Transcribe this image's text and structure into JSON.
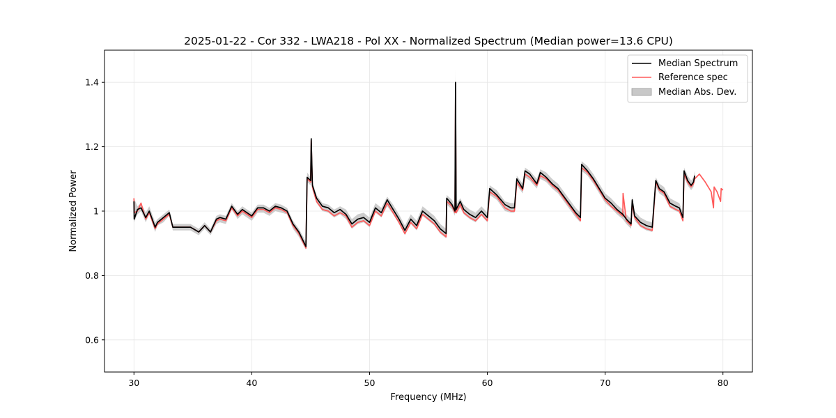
{
  "chart_data": {
    "type": "line",
    "title": "2025-01-22 - Cor 332 - LWA218 - Pol XX - Normalized Spectrum (Median power=13.6 CPU)",
    "xlabel": "Frequency (MHz)",
    "ylabel": "Normalized Power",
    "xlim": [
      27.5,
      82.5
    ],
    "ylim": [
      0.5,
      1.5
    ],
    "xticks": [
      30,
      40,
      50,
      60,
      70,
      80
    ],
    "yticks": [
      0.6,
      0.8,
      1.0,
      1.2,
      1.4
    ],
    "grid": true,
    "legend_position": "top-right",
    "series": [
      {
        "name": "Median Abs. Dev.",
        "kind": "band",
        "color": "#c8c8c8",
        "x": [
          30.0,
          30.3,
          30.6,
          31.0,
          31.3,
          31.8,
          32.0,
          32.5,
          33.0,
          33.3,
          34.0,
          34.8,
          35.5,
          36.0,
          36.5,
          37.0,
          37.3,
          37.8,
          38.3,
          38.8,
          39.2,
          39.6,
          40.0,
          40.5,
          41.0,
          41.5,
          42.0,
          42.5,
          43.0,
          43.5,
          44.0,
          44.6,
          44.7,
          45.0,
          45.05,
          45.15,
          45.5,
          46.0,
          46.5,
          47.0,
          47.5,
          48.0,
          48.5,
          49.0,
          49.5,
          50.0,
          50.5,
          51.0,
          51.5,
          52.0,
          52.5,
          53.0,
          53.5,
          54.0,
          54.5,
          55.0,
          55.5,
          56.0,
          56.5,
          56.55,
          57.0,
          57.25,
          57.3,
          57.35,
          57.7,
          58.0,
          58.5,
          59.0,
          59.5,
          60.0,
          60.2,
          60.8,
          61.5,
          62.0,
          62.3,
          62.5,
          63.0,
          63.2,
          63.6,
          64.2,
          64.5,
          65.0,
          65.5,
          66.0,
          66.5,
          67.0,
          67.5,
          67.9,
          68.0,
          68.5,
          69.0,
          69.5,
          70.0,
          70.5,
          71.0,
          71.5,
          71.8,
          72.2,
          72.3,
          72.5,
          73.0,
          73.5,
          74.0,
          74.3,
          74.6,
          75.0,
          75.5,
          76.0,
          76.3,
          76.6,
          76.7,
          77.0,
          77.3,
          77.5,
          77.6
        ],
        "upper": [
          1.04,
          1.015,
          1.025,
          0.995,
          1.015,
          0.965,
          0.975,
          0.99,
          1.005,
          0.96,
          0.96,
          0.96,
          0.945,
          0.965,
          0.945,
          0.985,
          0.99,
          0.985,
          1.025,
          1.0,
          1.015,
          1.005,
          0.995,
          1.02,
          1.02,
          1.01,
          1.025,
          1.02,
          1.01,
          0.97,
          0.945,
          0.905,
          1.12,
          1.105,
          1.23,
          1.09,
          1.05,
          1.025,
          1.02,
          1.005,
          1.015,
          1.005,
          0.975,
          0.99,
          0.995,
          0.98,
          1.025,
          1.01,
          1.045,
          1.02,
          0.99,
          0.955,
          0.99,
          0.97,
          1.015,
          1.0,
          0.985,
          0.96,
          0.945,
          1.05,
          1.035,
          1.015,
          1.44,
          1.02,
          1.04,
          1.02,
          1.005,
          0.995,
          1.015,
          0.995,
          1.08,
          1.065,
          1.03,
          1.025,
          1.025,
          1.11,
          1.085,
          1.135,
          1.125,
          1.1,
          1.13,
          1.12,
          1.1,
          1.085,
          1.06,
          1.035,
          1.01,
          0.995,
          1.155,
          1.14,
          1.115,
          1.085,
          1.055,
          1.04,
          1.02,
          1.005,
          0.99,
          0.975,
          1.045,
          1.0,
          0.98,
          0.97,
          0.965,
          1.105,
          1.085,
          1.075,
          1.04,
          1.03,
          1.025,
          0.995,
          1.135,
          1.11,
          1.095,
          1.105,
          1.125
        ],
        "lower": [
          0.965,
          0.99,
          1.0,
          0.965,
          0.99,
          0.935,
          0.955,
          0.965,
          0.985,
          0.94,
          0.94,
          0.94,
          0.925,
          0.945,
          0.925,
          0.96,
          0.965,
          0.96,
          1.005,
          0.975,
          0.99,
          0.98,
          0.97,
          0.995,
          0.995,
          0.985,
          1.0,
          0.995,
          0.99,
          0.945,
          0.92,
          0.88,
          1.09,
          1.08,
          1.19,
          1.065,
          1.025,
          1.0,
          0.995,
          0.98,
          0.99,
          0.975,
          0.945,
          0.96,
          0.965,
          0.95,
          0.995,
          0.98,
          1.015,
          0.99,
          0.96,
          0.925,
          0.96,
          0.94,
          0.985,
          0.97,
          0.955,
          0.93,
          0.915,
          1.02,
          1.005,
          0.985,
          1.36,
          0.99,
          1.01,
          0.99,
          0.975,
          0.965,
          0.985,
          0.965,
          1.05,
          1.035,
          1.0,
          0.995,
          0.995,
          1.08,
          1.055,
          1.105,
          1.095,
          1.07,
          1.1,
          1.09,
          1.07,
          1.055,
          1.03,
          1.005,
          0.98,
          0.965,
          1.125,
          1.11,
          1.085,
          1.055,
          1.025,
          1.01,
          0.99,
          0.975,
          0.96,
          0.945,
          1.015,
          0.97,
          0.95,
          0.94,
          0.935,
          1.075,
          1.055,
          1.045,
          1.01,
          1.0,
          0.995,
          0.965,
          1.105,
          1.08,
          1.065,
          1.075,
          1.095
        ]
      },
      {
        "name": "Reference spec",
        "kind": "line",
        "color": "#ff5a5a",
        "x": [
          30.0,
          30.02,
          30.3,
          30.6,
          31.0,
          31.3,
          31.8,
          32.0,
          32.5,
          33.0,
          33.3,
          34.0,
          34.8,
          35.5,
          36.0,
          36.5,
          37.0,
          37.3,
          37.8,
          38.3,
          38.8,
          39.2,
          39.6,
          40.0,
          40.5,
          41.0,
          41.5,
          42.0,
          42.5,
          43.0,
          43.5,
          44.0,
          44.6,
          44.7,
          45.0,
          45.05,
          45.15,
          45.5,
          46.0,
          46.5,
          47.0,
          47.5,
          48.0,
          48.5,
          49.0,
          49.5,
          50.0,
          50.5,
          51.0,
          51.5,
          52.0,
          52.5,
          53.0,
          53.5,
          54.0,
          54.5,
          55.0,
          55.5,
          56.0,
          56.5,
          56.55,
          57.0,
          57.25,
          57.3,
          57.35,
          57.7,
          58.0,
          58.5,
          59.0,
          59.5,
          60.0,
          60.2,
          60.8,
          61.5,
          62.0,
          62.3,
          62.5,
          63.0,
          63.2,
          63.6,
          64.2,
          64.5,
          65.0,
          65.5,
          66.0,
          66.5,
          67.0,
          67.5,
          67.9,
          68.0,
          68.5,
          69.0,
          69.5,
          70.0,
          70.5,
          71.0,
          71.5,
          71.52,
          71.8,
          72.2,
          72.3,
          72.5,
          73.0,
          73.5,
          74.0,
          74.3,
          74.6,
          75.0,
          75.5,
          76.0,
          76.3,
          76.6,
          76.7,
          77.0,
          77.3,
          77.5,
          77.6,
          78.0,
          78.5,
          79.0,
          79.2,
          79.25,
          79.5,
          79.8,
          79.85,
          80.0
        ],
        "values": [
          1.04,
          0.995,
          1.0,
          1.025,
          0.975,
          0.995,
          0.945,
          0.96,
          0.975,
          0.99,
          0.95,
          0.95,
          0.95,
          0.935,
          0.955,
          0.935,
          0.97,
          0.975,
          0.97,
          1.01,
          0.985,
          1.0,
          0.99,
          0.98,
          1.005,
          1.005,
          0.995,
          1.01,
          1.005,
          0.995,
          0.955,
          0.93,
          0.885,
          1.1,
          1.09,
          1.22,
          1.075,
          1.03,
          1.005,
          1.0,
          0.985,
          0.995,
          0.985,
          0.95,
          0.965,
          0.97,
          0.955,
          1.0,
          0.985,
          1.025,
          0.995,
          0.965,
          0.93,
          0.965,
          0.945,
          0.99,
          0.975,
          0.96,
          0.935,
          0.92,
          1.03,
          1.015,
          0.995,
          1.37,
          0.995,
          1.02,
          0.995,
          0.98,
          0.97,
          0.99,
          0.97,
          1.06,
          1.045,
          1.01,
          1.0,
          1.0,
          1.09,
          1.065,
          1.115,
          1.105,
          1.08,
          1.11,
          1.1,
          1.08,
          1.065,
          1.04,
          1.015,
          0.99,
          0.97,
          1.135,
          1.12,
          1.095,
          1.065,
          1.035,
          1.015,
          1.0,
          0.985,
          1.055,
          0.97,
          0.955,
          1.025,
          0.98,
          0.955,
          0.945,
          0.94,
          1.09,
          1.065,
          1.055,
          1.015,
          1.005,
          1.0,
          0.97,
          1.115,
          1.09,
          1.075,
          1.085,
          1.1,
          1.115,
          1.09,
          1.06,
          1.01,
          1.075,
          1.06,
          1.03,
          1.07,
          1.065
        ]
      },
      {
        "name": "Median Spectrum",
        "kind": "line",
        "color": "#000000",
        "x": [
          30.0,
          30.02,
          30.3,
          30.6,
          31.0,
          31.3,
          31.8,
          32.0,
          32.5,
          33.0,
          33.3,
          34.0,
          34.8,
          35.5,
          36.0,
          36.5,
          37.0,
          37.3,
          37.8,
          38.3,
          38.8,
          39.2,
          39.6,
          40.0,
          40.5,
          41.0,
          41.5,
          42.0,
          42.5,
          43.0,
          43.5,
          44.0,
          44.6,
          44.7,
          45.0,
          45.05,
          45.15,
          45.5,
          46.0,
          46.5,
          47.0,
          47.5,
          48.0,
          48.5,
          49.0,
          49.5,
          50.0,
          50.5,
          51.0,
          51.5,
          52.0,
          52.5,
          53.0,
          53.5,
          54.0,
          54.5,
          55.0,
          55.5,
          56.0,
          56.5,
          56.55,
          57.0,
          57.25,
          57.3,
          57.35,
          57.7,
          58.0,
          58.5,
          59.0,
          59.5,
          60.0,
          60.2,
          60.8,
          61.5,
          62.0,
          62.3,
          62.5,
          63.0,
          63.2,
          63.6,
          64.2,
          64.5,
          65.0,
          65.5,
          66.0,
          66.5,
          67.0,
          67.5,
          67.9,
          68.0,
          68.5,
          69.0,
          69.5,
          70.0,
          70.5,
          71.0,
          71.5,
          71.8,
          72.2,
          72.3,
          72.5,
          73.0,
          73.5,
          74.0,
          74.3,
          74.6,
          75.0,
          75.5,
          76.0,
          76.3,
          76.6,
          76.7,
          77.0,
          77.3,
          77.5,
          77.6
        ],
        "values": [
          1.03,
          0.975,
          1.005,
          1.01,
          0.98,
          1.0,
          0.95,
          0.965,
          0.98,
          0.995,
          0.95,
          0.95,
          0.95,
          0.935,
          0.955,
          0.935,
          0.975,
          0.98,
          0.975,
          1.015,
          0.99,
          1.005,
          0.995,
          0.985,
          1.01,
          1.01,
          1.0,
          1.015,
          1.01,
          1.0,
          0.96,
          0.935,
          0.89,
          1.105,
          1.095,
          1.225,
          1.08,
          1.04,
          1.015,
          1.01,
          0.995,
          1.005,
          0.99,
          0.96,
          0.975,
          0.98,
          0.965,
          1.01,
          0.995,
          1.035,
          1.005,
          0.975,
          0.94,
          0.975,
          0.955,
          1.0,
          0.985,
          0.97,
          0.945,
          0.93,
          1.04,
          1.02,
          1.0,
          1.4,
          1.005,
          1.03,
          1.005,
          0.99,
          0.98,
          1.0,
          0.98,
          1.07,
          1.05,
          1.02,
          1.01,
          1.01,
          1.1,
          1.07,
          1.125,
          1.115,
          1.085,
          1.12,
          1.105,
          1.085,
          1.07,
          1.045,
          1.02,
          0.995,
          0.98,
          1.145,
          1.125,
          1.1,
          1.07,
          1.04,
          1.025,
          1.005,
          0.99,
          0.975,
          0.96,
          1.035,
          0.985,
          0.965,
          0.955,
          0.95,
          1.095,
          1.07,
          1.06,
          1.025,
          1.015,
          1.01,
          0.98,
          1.125,
          1.095,
          1.08,
          1.09,
          1.11
        ]
      }
    ],
    "legend": [
      "Median Spectrum",
      "Reference spec",
      "Median Abs. Dev."
    ]
  }
}
